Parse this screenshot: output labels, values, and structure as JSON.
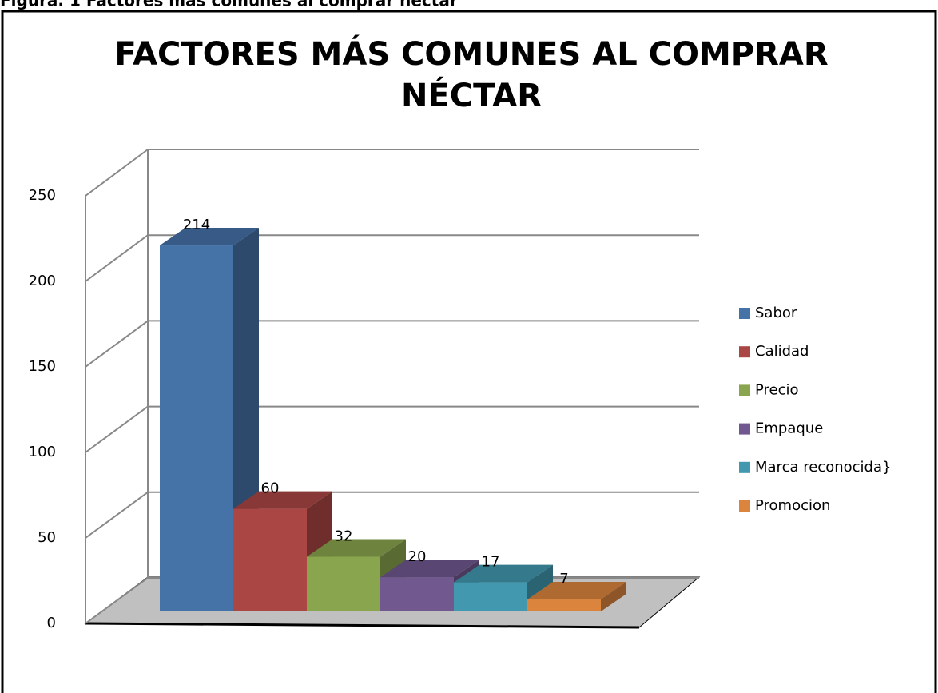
{
  "chart_data": {
    "type": "bar",
    "caption": "Figura. 1 Factores más comunes al comprar néctar",
    "title": [
      "FACTORES MÁS COMUNES AL COMPRAR",
      "NÉCTAR"
    ],
    "series": [
      {
        "name": "Sabor",
        "color": "#4572a7",
        "values": [
          214
        ]
      },
      {
        "name": "Calidad",
        "color": "#aa4643",
        "values": [
          60
        ]
      },
      {
        "name": "Precio",
        "color": "#89a54e",
        "values": [
          32
        ]
      },
      {
        "name": "Empaque",
        "color": "#71588f",
        "values": [
          20
        ]
      },
      {
        "name": "Marca reconocida}",
        "color": "#4198af",
        "values": [
          17
        ]
      },
      {
        "name": "Promocion",
        "color": "#db843d",
        "values": [
          7
        ]
      }
    ],
    "ylim": [
      0,
      250
    ],
    "yticks": [
      0,
      50,
      100,
      150,
      200,
      250
    ],
    "grid": true,
    "legend": "right"
  }
}
